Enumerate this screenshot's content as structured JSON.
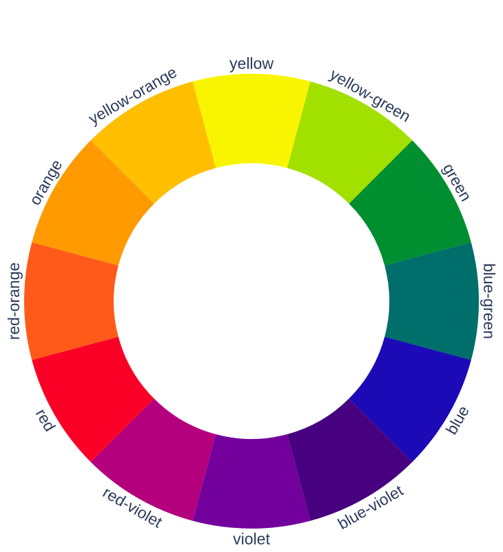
{
  "wheel": {
    "segments": [
      {
        "label": "yellow",
        "color": "#f9f500"
      },
      {
        "label": "yellow-green",
        "color": "#a2e000"
      },
      {
        "label": "green",
        "color": "#008f30"
      },
      {
        "label": "blue-green",
        "color": "#006e6a"
      },
      {
        "label": "blue",
        "color": "#1b0ab6"
      },
      {
        "label": "blue-violet",
        "color": "#470080"
      },
      {
        "label": "violet",
        "color": "#73009c"
      },
      {
        "label": "red-violet",
        "color": "#b5007e"
      },
      {
        "label": "red",
        "color": "#fa0026"
      },
      {
        "label": "red-orange",
        "color": "#ff5a19"
      },
      {
        "label": "orange",
        "color": "#ff9a00"
      },
      {
        "label": "yellow-orange",
        "color": "#ffbf00"
      }
    ]
  }
}
